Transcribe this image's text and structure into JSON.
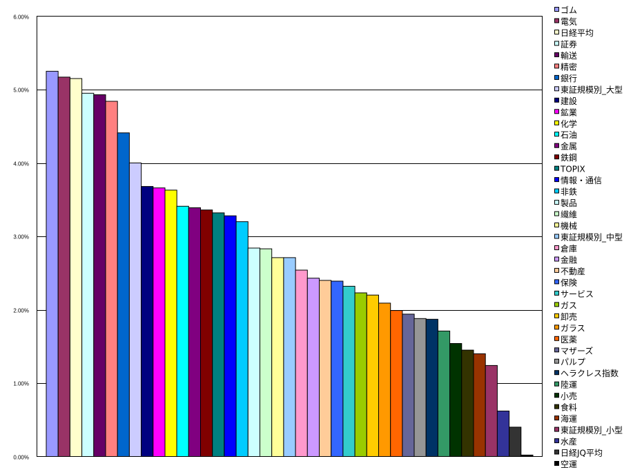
{
  "chart_data": {
    "type": "bar",
    "title": "",
    "xlabel": "",
    "ylabel": "",
    "ylim": [
      0,
      6
    ],
    "y_ticks": [
      "0.00%",
      "1.00%",
      "2.00%",
      "3.00%",
      "4.00%",
      "5.00%",
      "6.00%"
    ],
    "grid": "horizontal",
    "legend": "right",
    "series": [
      {
        "name": "ゴム",
        "value": 5.25,
        "color": "#9999FF"
      },
      {
        "name": "電気",
        "value": 5.17,
        "color": "#993366"
      },
      {
        "name": "日経平均",
        "value": 5.15,
        "color": "#FFFFCC"
      },
      {
        "name": "証券",
        "value": 4.95,
        "color": "#CCFFFF"
      },
      {
        "name": "輸送",
        "value": 4.93,
        "color": "#660066"
      },
      {
        "name": "精密",
        "value": 4.84,
        "color": "#FF8080"
      },
      {
        "name": "銀行",
        "value": 4.41,
        "color": "#0066CC"
      },
      {
        "name": "東証規模別_大型",
        "value": 4.0,
        "color": "#CCCCFF"
      },
      {
        "name": "建設",
        "value": 3.68,
        "color": "#000080"
      },
      {
        "name": "鉱業",
        "value": 3.66,
        "color": "#FF00FF"
      },
      {
        "name": "化学",
        "value": 3.63,
        "color": "#FFFF00"
      },
      {
        "name": "石油",
        "value": 3.41,
        "color": "#00FFFF"
      },
      {
        "name": "金属",
        "value": 3.39,
        "color": "#800080"
      },
      {
        "name": "鉄鋼",
        "value": 3.36,
        "color": "#800000"
      },
      {
        "name": "TOPIX",
        "value": 3.32,
        "color": "#008080"
      },
      {
        "name": "情報・通信",
        "value": 3.28,
        "color": "#0000FF"
      },
      {
        "name": "非鉄",
        "value": 3.2,
        "color": "#00CCFF"
      },
      {
        "name": "製品",
        "value": 2.84,
        "color": "#CCFFFF"
      },
      {
        "name": "繊維",
        "value": 2.83,
        "color": "#CCFFCC"
      },
      {
        "name": "機械",
        "value": 2.71,
        "color": "#FFFF99"
      },
      {
        "name": "東証規模別_中型",
        "value": 2.71,
        "color": "#99CCFF"
      },
      {
        "name": "倉庫",
        "value": 2.54,
        "color": "#FF99CC"
      },
      {
        "name": "金融",
        "value": 2.43,
        "color": "#CC99FF"
      },
      {
        "name": "不動産",
        "value": 2.4,
        "color": "#FFCC99"
      },
      {
        "name": "保険",
        "value": 2.39,
        "color": "#3366FF"
      },
      {
        "name": "サービス",
        "value": 2.32,
        "color": "#33CCCC"
      },
      {
        "name": "ガス",
        "value": 2.23,
        "color": "#99CC00"
      },
      {
        "name": "卸売",
        "value": 2.2,
        "color": "#FFCC00"
      },
      {
        "name": "ガラス",
        "value": 2.09,
        "color": "#FF9900"
      },
      {
        "name": "医薬",
        "value": 1.99,
        "color": "#FF6600"
      },
      {
        "name": "マザーズ",
        "value": 1.94,
        "color": "#666699"
      },
      {
        "name": "パルプ",
        "value": 1.88,
        "color": "#969696"
      },
      {
        "name": "ヘラクレス指数",
        "value": 1.87,
        "color": "#003366"
      },
      {
        "name": "陸運",
        "value": 1.71,
        "color": "#339966"
      },
      {
        "name": "小売",
        "value": 1.54,
        "color": "#003300"
      },
      {
        "name": "食料",
        "value": 1.45,
        "color": "#333300"
      },
      {
        "name": "海運",
        "value": 1.4,
        "color": "#993300"
      },
      {
        "name": "東証規模別_小型",
        "value": 1.24,
        "color": "#993366"
      },
      {
        "name": "水産",
        "value": 0.62,
        "color": "#333399"
      },
      {
        "name": "日経JQ平均",
        "value": 0.4,
        "color": "#333333"
      },
      {
        "name": "空運",
        "value": 0.02,
        "color": "#000000"
      }
    ]
  }
}
